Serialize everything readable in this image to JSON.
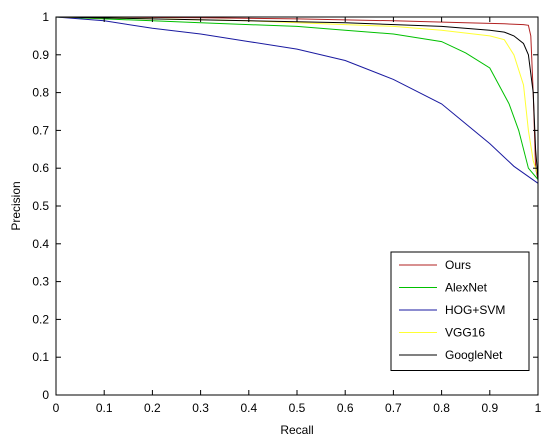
{
  "chart_data": {
    "type": "line",
    "xlabel": "Recall",
    "ylabel": "Precision",
    "xlim": [
      0,
      1
    ],
    "ylim": [
      0,
      1
    ],
    "xticks": [
      "0",
      "0.1",
      "0.2",
      "0.3",
      "0.4",
      "0.5",
      "0.6",
      "0.7",
      "0.8",
      "0.9",
      "1"
    ],
    "yticks": [
      "0",
      "0.1",
      "0.2",
      "0.3",
      "0.4",
      "0.5",
      "0.6",
      "0.7",
      "0.8",
      "0.9",
      "1"
    ],
    "grid": false,
    "legend_position": "bottom-right",
    "series": [
      {
        "name": "Ours",
        "color": "#b22222",
        "points": [
          [
            0,
            1
          ],
          [
            0.1,
            1
          ],
          [
            0.3,
            0.998
          ],
          [
            0.5,
            0.995
          ],
          [
            0.7,
            0.99
          ],
          [
            0.85,
            0.985
          ],
          [
            0.93,
            0.982
          ],
          [
            0.97,
            0.98
          ],
          [
            0.98,
            0.978
          ],
          [
            0.985,
            0.95
          ],
          [
            0.99,
            0.8
          ],
          [
            0.995,
            0.6
          ],
          [
            1,
            0.57
          ]
        ]
      },
      {
        "name": "AlexNet",
        "color": "#00c000",
        "points": [
          [
            0,
            1
          ],
          [
            0.1,
            0.995
          ],
          [
            0.2,
            0.99
          ],
          [
            0.3,
            0.985
          ],
          [
            0.4,
            0.98
          ],
          [
            0.5,
            0.975
          ],
          [
            0.6,
            0.965
          ],
          [
            0.7,
            0.955
          ],
          [
            0.8,
            0.935
          ],
          [
            0.85,
            0.905
          ],
          [
            0.9,
            0.865
          ],
          [
            0.94,
            0.77
          ],
          [
            0.96,
            0.7
          ],
          [
            0.98,
            0.6
          ],
          [
            1,
            0.57
          ]
        ]
      },
      {
        "name": "HOG+SVM",
        "color": "#1a1aa0",
        "points": [
          [
            0,
            1
          ],
          [
            0.1,
            0.99
          ],
          [
            0.2,
            0.97
          ],
          [
            0.3,
            0.955
          ],
          [
            0.4,
            0.935
          ],
          [
            0.5,
            0.915
          ],
          [
            0.6,
            0.885
          ],
          [
            0.7,
            0.835
          ],
          [
            0.8,
            0.77
          ],
          [
            0.9,
            0.665
          ],
          [
            0.95,
            0.605
          ],
          [
            1,
            0.56
          ]
        ]
      },
      {
        "name": "VGG16",
        "color": "#ffff33",
        "points": [
          [
            0,
            1
          ],
          [
            0.2,
            0.995
          ],
          [
            0.4,
            0.99
          ],
          [
            0.6,
            0.98
          ],
          [
            0.7,
            0.975
          ],
          [
            0.8,
            0.965
          ],
          [
            0.9,
            0.95
          ],
          [
            0.93,
            0.94
          ],
          [
            0.95,
            0.9
          ],
          [
            0.97,
            0.82
          ],
          [
            0.98,
            0.7
          ],
          [
            0.99,
            0.62
          ],
          [
            1,
            0.58
          ]
        ]
      },
      {
        "name": "GoogleNet",
        "color": "#000000",
        "points": [
          [
            0,
            1
          ],
          [
            0.2,
            0.995
          ],
          [
            0.4,
            0.99
          ],
          [
            0.6,
            0.985
          ],
          [
            0.8,
            0.975
          ],
          [
            0.9,
            0.965
          ],
          [
            0.93,
            0.96
          ],
          [
            0.95,
            0.95
          ],
          [
            0.97,
            0.93
          ],
          [
            0.98,
            0.9
          ],
          [
            0.99,
            0.8
          ],
          [
            0.995,
            0.65
          ],
          [
            1,
            0.57
          ]
        ]
      }
    ]
  }
}
